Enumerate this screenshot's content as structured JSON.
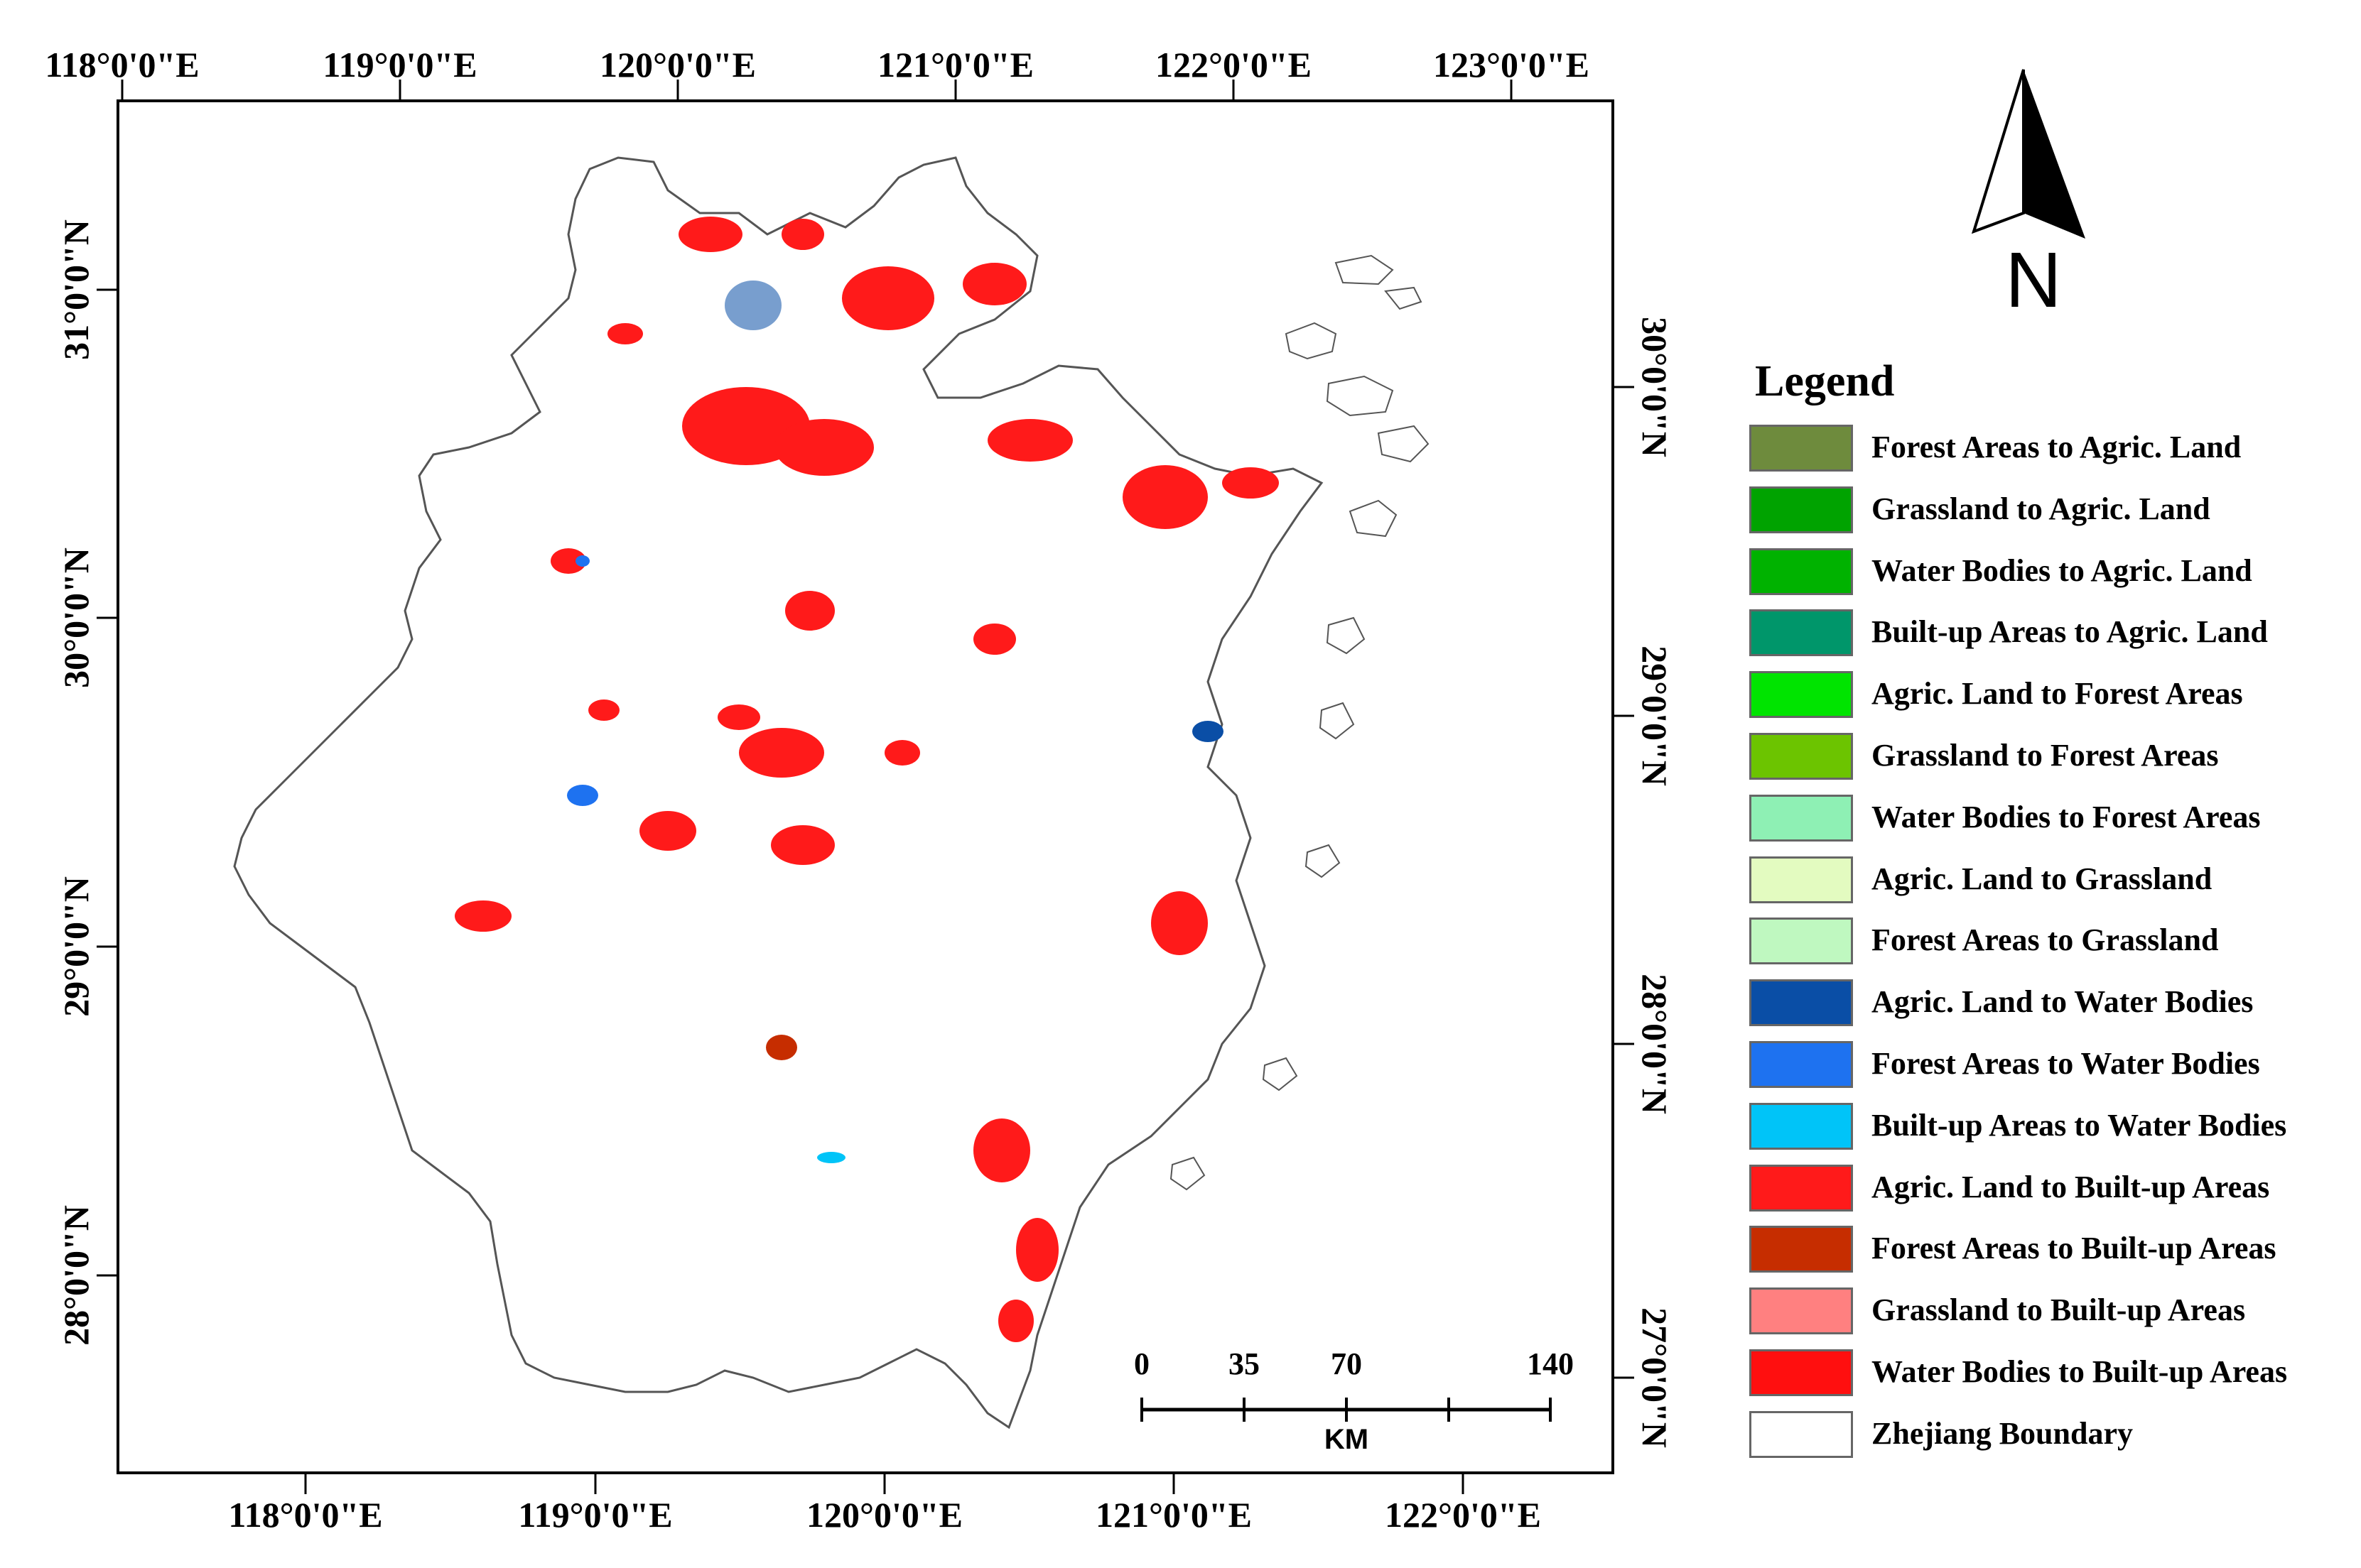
{
  "map": {
    "top_lon_labels": [
      "118°0'0\"E",
      "119°0'0\"E",
      "120°0'0\"E",
      "121°0'0\"E",
      "122°0'0\"E",
      "123°0'0\"E"
    ],
    "bottom_lon_labels": [
      "118°0'0\"E",
      "119°0'0\"E",
      "120°0'0\"E",
      "121°0'0\"E",
      "122°0'0\"E"
    ],
    "left_lat_labels": [
      "31°0'0\"N",
      "30°0'0\"N",
      "29°0'0\"N",
      "28°0'0\"N"
    ],
    "right_lat_labels": [
      "30°0'0\"N",
      "29°0'0\"N",
      "28°0'0\"N",
      "27°0'0\"N"
    ],
    "north_arrow_label": "N",
    "scale_bar": {
      "ticks": [
        "0",
        "35",
        "70",
        "140"
      ],
      "unit": "KM"
    }
  },
  "legend": {
    "title": "Legend",
    "items": [
      {
        "label": "Forest Areas to Agric. Land",
        "color": "#6e8b3d"
      },
      {
        "label": "Grassland to Agric. Land",
        "color": "#00a300"
      },
      {
        "label": "Water Bodies to Agric. Land",
        "color": "#00b200"
      },
      {
        "label": "Built-up Areas to Agric. Land",
        "color": "#00966a"
      },
      {
        "label": "Agric. Land to Forest Areas",
        "color": "#00e400"
      },
      {
        "label": "Grassland to Forest Areas",
        "color": "#6cc400"
      },
      {
        "label": "Water Bodies to Forest Areas",
        "color": "#8ef0b4"
      },
      {
        "label": "Agric. Land to Grassland",
        "color": "#e3fbc0"
      },
      {
        "label": "Forest Areas to Grassland",
        "color": "#bff8c0"
      },
      {
        "label": "Agric. Land to Water Bodies",
        "color": "#0a4ea6"
      },
      {
        "label": "Forest Areas to Water Bodies",
        "color": "#1e72f0"
      },
      {
        "label": "Built-up Areas to Water Bodies",
        "color": "#00c4f8"
      },
      {
        "label": "Agric. Land to Built-up Areas",
        "color": "#ff1a1a"
      },
      {
        "label": "Forest Areas to Built-up Areas",
        "color": "#c62d00"
      },
      {
        "label": "Grassland to Built-up Areas",
        "color": "#ff8080"
      },
      {
        "label": "Water Bodies to Built-up Areas",
        "color": "#ff0f0f"
      },
      {
        "label": "Zhejiang Boundary",
        "color": "#ffffff"
      }
    ]
  }
}
